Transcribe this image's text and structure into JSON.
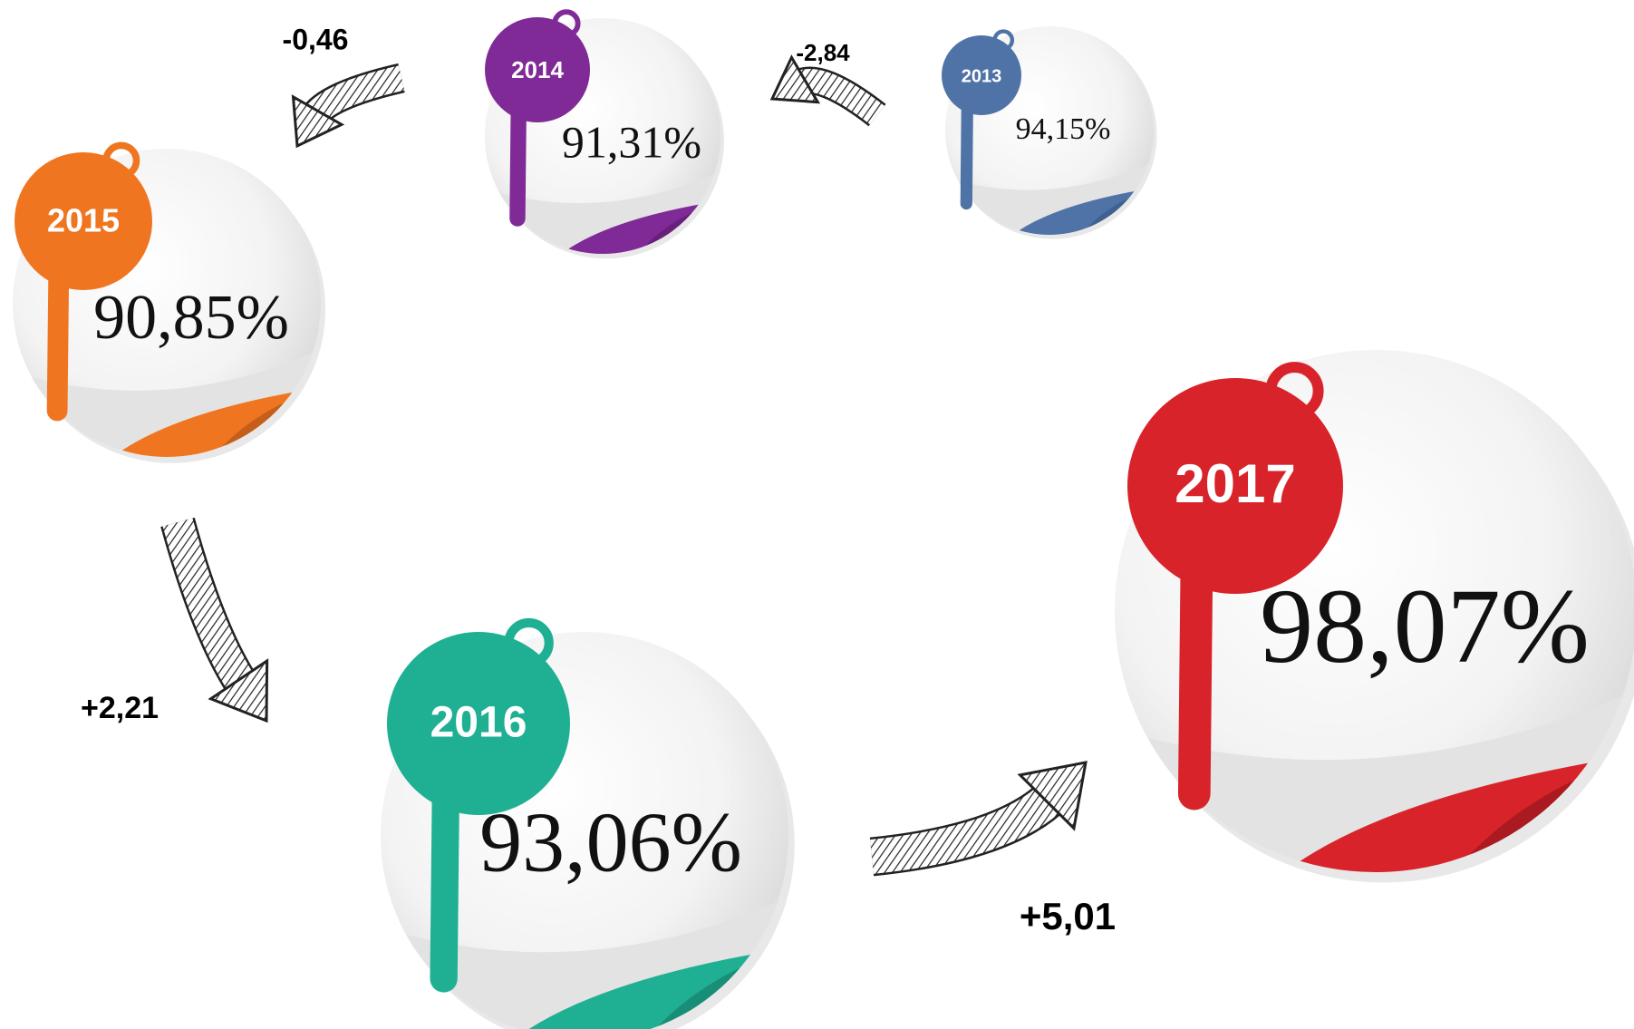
{
  "nodes": [
    {
      "year": "2013",
      "value": "94,15%"
    },
    {
      "year": "2014",
      "value": "91,31%"
    },
    {
      "year": "2015",
      "value": "90,85%"
    },
    {
      "year": "2016",
      "value": "93,06%"
    },
    {
      "year": "2017",
      "value": "98,07%"
    }
  ],
  "changes": [
    {
      "label": "-2,84"
    },
    {
      "label": "-0,46"
    },
    {
      "label": "+2,21"
    },
    {
      "label": "+5,01"
    }
  ]
}
